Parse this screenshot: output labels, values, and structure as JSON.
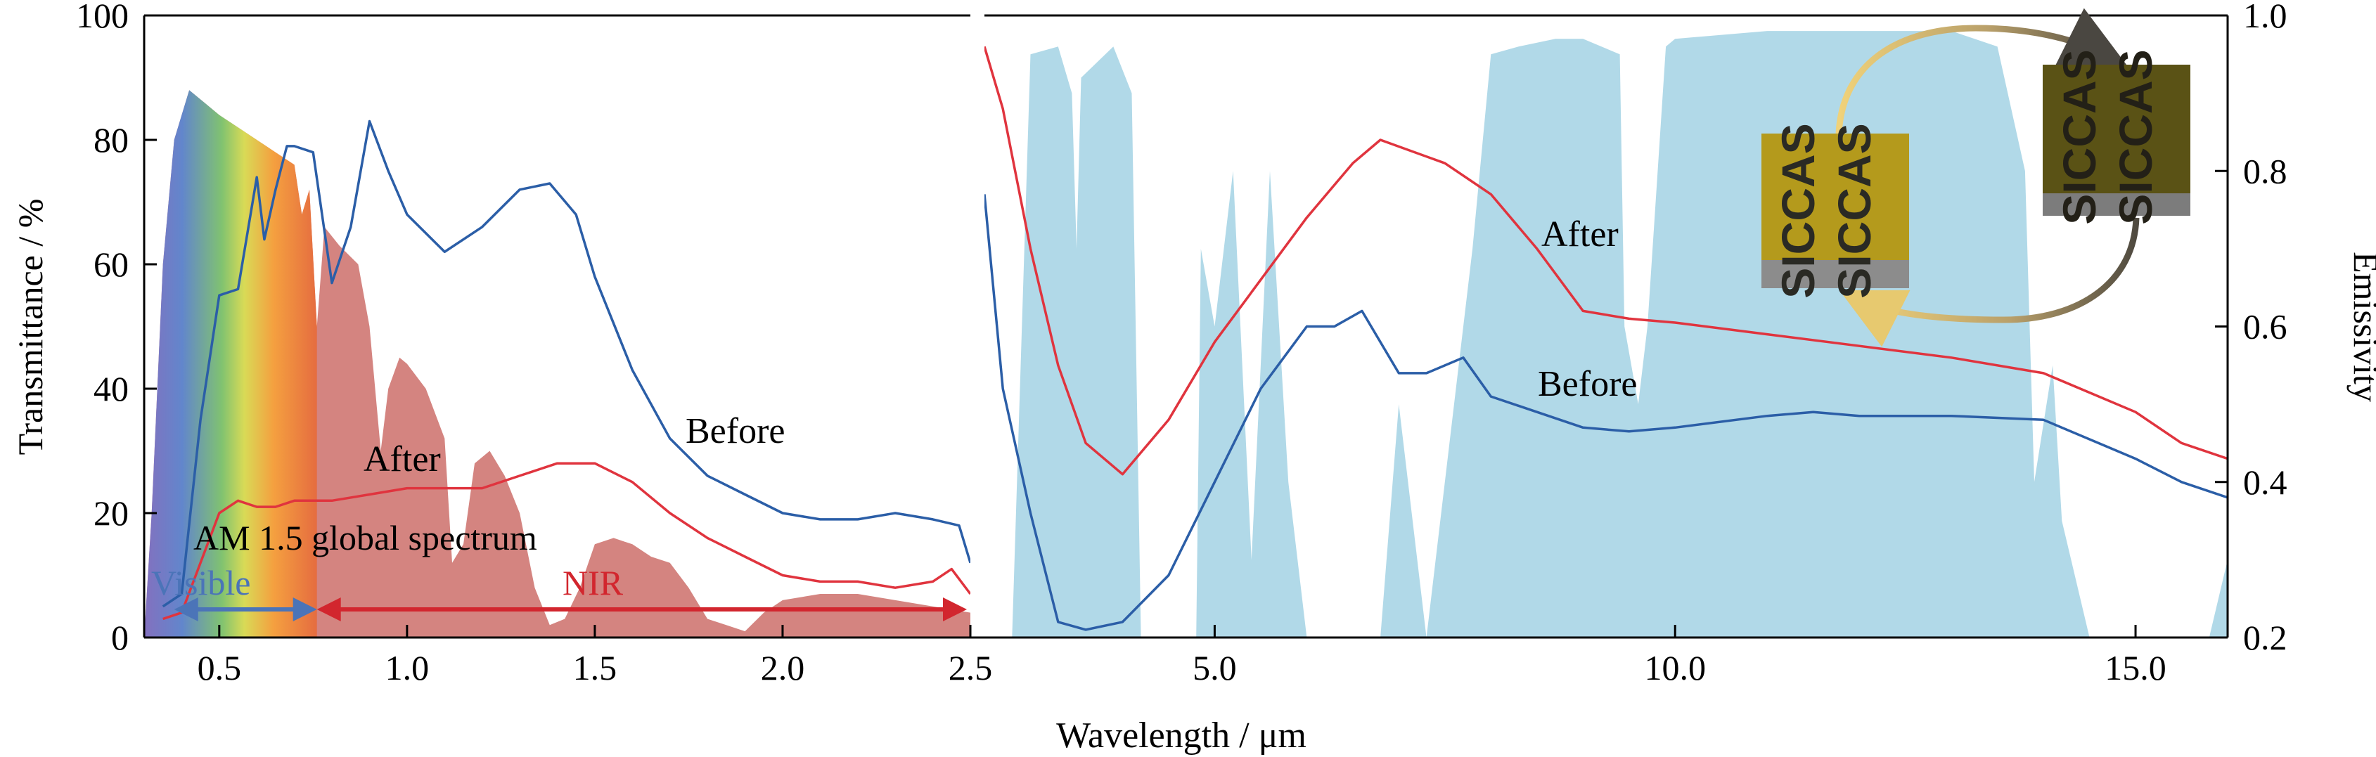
{
  "chart_data": [
    {
      "type": "line",
      "panel": "left",
      "ylabel": "Transmittance / %",
      "xlim": [
        0.3,
        2.5
      ],
      "ylim": [
        0,
        100
      ],
      "x_ticks": [
        "0.5",
        "1.0",
        "1.5",
        "2.0",
        "2.5"
      ],
      "y_ticks": [
        "0",
        "20",
        "40",
        "60",
        "80",
        "100"
      ],
      "series": [
        {
          "name": "Before",
          "color": "#2b5ea7",
          "x": [
            0.35,
            0.4,
            0.45,
            0.5,
            0.55,
            0.6,
            0.62,
            0.65,
            0.68,
            0.7,
            0.75,
            0.8,
            0.85,
            0.9,
            0.95,
            1.0,
            1.1,
            1.2,
            1.3,
            1.38,
            1.45,
            1.5,
            1.6,
            1.7,
            1.8,
            1.9,
            2.0,
            2.1,
            2.2,
            2.3,
            2.4,
            2.47,
            2.5
          ],
          "y": [
            5,
            7,
            35,
            55,
            56,
            74,
            64,
            72,
            79,
            79,
            78,
            57,
            66,
            83,
            75,
            68,
            62,
            66,
            72,
            73,
            68,
            58,
            43,
            32,
            26,
            23,
            20,
            19,
            19,
            20,
            19,
            18,
            12
          ]
        },
        {
          "name": "After",
          "color": "#e0343e",
          "x": [
            0.35,
            0.4,
            0.45,
            0.5,
            0.55,
            0.6,
            0.65,
            0.7,
            0.8,
            0.9,
            1.0,
            1.1,
            1.2,
            1.3,
            1.4,
            1.5,
            1.6,
            1.7,
            1.8,
            1.9,
            2.0,
            2.1,
            2.2,
            2.3,
            2.4,
            2.45,
            2.5
          ],
          "y": [
            3,
            4,
            12,
            20,
            22,
            21,
            21,
            22,
            22,
            23,
            24,
            24,
            24,
            26,
            28,
            28,
            25,
            20,
            16,
            13,
            10,
            9,
            9,
            8,
            9,
            11,
            7
          ]
        }
      ],
      "annotations": [
        "Before",
        "After",
        "AM 1.5 global spectrum",
        "Visible",
        "NIR"
      ],
      "shaded_spectrum": "AM 1.5 global spectrum",
      "visible_range": [
        0.38,
        0.76
      ],
      "nir_range": [
        0.76,
        2.5
      ],
      "colors": {
        "visible": "#4b74b8",
        "nir": "#d2262e",
        "spectrum_fill": "#cc6e6a"
      }
    },
    {
      "type": "line",
      "panel": "right",
      "xlabel": "Wavelength / μm",
      "ylabel": "Emissivity",
      "xlim": [
        2.5,
        16.0
      ],
      "ylim": [
        0.2,
        1.0
      ],
      "x_ticks": [
        "5.0",
        "10.0",
        "15.0"
      ],
      "y_ticks": [
        "0.2",
        "0.4",
        "0.6",
        "0.8",
        "1.0"
      ],
      "series": [
        {
          "name": "Before",
          "color": "#2b5ea7",
          "x": [
            2.5,
            2.7,
            3.0,
            3.3,
            3.6,
            4.0,
            4.5,
            5.0,
            5.5,
            6.0,
            6.3,
            6.6,
            7.0,
            7.3,
            7.7,
            8.0,
            8.5,
            9.0,
            9.5,
            10.0,
            11.0,
            11.5,
            12.0,
            13.0,
            14.0,
            15.0,
            15.5,
            16.0
          ],
          "y": [
            0.77,
            0.52,
            0.36,
            0.22,
            0.21,
            0.22,
            0.28,
            0.4,
            0.52,
            0.6,
            0.6,
            0.62,
            0.54,
            0.54,
            0.56,
            0.51,
            0.49,
            0.47,
            0.465,
            0.47,
            0.485,
            0.49,
            0.485,
            0.485,
            0.48,
            0.43,
            0.4,
            0.38
          ]
        },
        {
          "name": "After",
          "color": "#e0343e",
          "x": [
            2.5,
            2.7,
            3.0,
            3.3,
            3.6,
            4.0,
            4.5,
            5.0,
            5.5,
            6.0,
            6.5,
            6.8,
            7.5,
            8.0,
            8.5,
            9.0,
            9.5,
            10.0,
            11.0,
            12.0,
            13.0,
            14.0,
            15.0,
            15.5,
            16.0
          ],
          "y": [
            0.96,
            0.88,
            0.7,
            0.55,
            0.45,
            0.41,
            0.48,
            0.58,
            0.66,
            0.74,
            0.81,
            0.84,
            0.81,
            0.77,
            0.7,
            0.62,
            0.61,
            0.605,
            0.59,
            0.575,
            0.56,
            0.54,
            0.49,
            0.45,
            0.43
          ]
        }
      ],
      "annotations": [
        "After",
        "Before"
      ],
      "inset": {
        "image": "SICCAS sample photographs",
        "sample_text": "SICCAS"
      },
      "colors": {
        "transmission_window": "#a8d5e5"
      }
    }
  ]
}
